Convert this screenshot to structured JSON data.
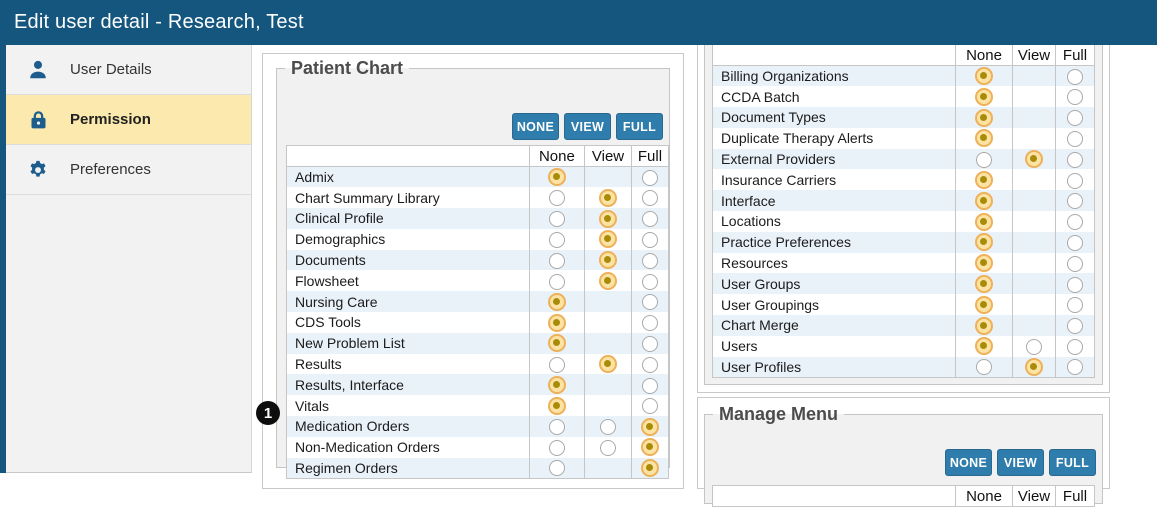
{
  "title_bar": {
    "title": "Edit user detail - Research, Test"
  },
  "sidebar": {
    "items": [
      {
        "label": "User Details",
        "icon": "user",
        "active": false
      },
      {
        "label": "Permission",
        "icon": "lock",
        "active": true
      },
      {
        "label": "Preferences",
        "icon": "gear",
        "active": false
      }
    ]
  },
  "colors": {
    "titlebar_bg": "#14567e",
    "button_bg": "#2f7dac",
    "active_item_bg": "#fbe9ad",
    "icon_blue": "#1d5d8d",
    "stripe": "#e9f1f9",
    "radio_sel_ring": "#edb159",
    "radio_sel_fill": "#fce3a3",
    "radio_sel_dot": "#a88c09"
  },
  "patient_chart": {
    "legend": "Patient Chart",
    "buttons": [
      "NONE",
      "VIEW",
      "FULL"
    ],
    "columns": [
      "None",
      "View",
      "Full"
    ],
    "rows": [
      {
        "label": "Admix",
        "none": "selected",
        "view": "absent",
        "full": "empty"
      },
      {
        "label": "Chart Summary Library",
        "none": "empty",
        "view": "selected",
        "full": "empty"
      },
      {
        "label": "Clinical Profile",
        "none": "empty",
        "view": "selected",
        "full": "empty"
      },
      {
        "label": "Demographics",
        "none": "empty",
        "view": "selected",
        "full": "empty"
      },
      {
        "label": "Documents",
        "none": "empty",
        "view": "selected",
        "full": "empty"
      },
      {
        "label": "Flowsheet",
        "none": "empty",
        "view": "selected",
        "full": "empty"
      },
      {
        "label": "Nursing Care",
        "none": "selected",
        "view": "absent",
        "full": "empty"
      },
      {
        "label": "CDS Tools",
        "none": "selected",
        "view": "absent",
        "full": "empty"
      },
      {
        "label": "New Problem List",
        "none": "selected",
        "view": "absent",
        "full": "empty"
      },
      {
        "label": "Results",
        "none": "empty",
        "view": "selected",
        "full": "empty"
      },
      {
        "label": "Results, Interface",
        "none": "selected",
        "view": "absent",
        "full": "empty"
      },
      {
        "label": "Vitals",
        "none": "selected",
        "view": "absent",
        "full": "empty"
      },
      {
        "label": "Medication Orders",
        "none": "empty",
        "view": "empty",
        "full": "selected"
      },
      {
        "label": "Non-Medication Orders",
        "none": "empty",
        "view": "empty",
        "full": "selected"
      },
      {
        "label": "Regimen Orders",
        "none": "empty",
        "view": "absent",
        "full": "selected"
      }
    ]
  },
  "admin_section": {
    "columns": [
      "None",
      "View",
      "Full"
    ],
    "rows": [
      {
        "label": "Billing Organizations",
        "none": "selected",
        "view": "absent",
        "full": "empty"
      },
      {
        "label": "CCDA Batch",
        "none": "selected",
        "view": "absent",
        "full": "empty"
      },
      {
        "label": "Document Types",
        "none": "selected",
        "view": "absent",
        "full": "empty"
      },
      {
        "label": "Duplicate Therapy Alerts",
        "none": "selected",
        "view": "absent",
        "full": "empty"
      },
      {
        "label": "External Providers",
        "none": "empty",
        "view": "selected",
        "full": "empty"
      },
      {
        "label": "Insurance Carriers",
        "none": "selected",
        "view": "absent",
        "full": "empty"
      },
      {
        "label": "Interface",
        "none": "selected",
        "view": "absent",
        "full": "empty"
      },
      {
        "label": "Locations",
        "none": "selected",
        "view": "absent",
        "full": "empty"
      },
      {
        "label": "Practice Preferences",
        "none": "selected",
        "view": "absent",
        "full": "empty"
      },
      {
        "label": "Resources",
        "none": "selected",
        "view": "absent",
        "full": "empty"
      },
      {
        "label": "User Groups",
        "none": "selected",
        "view": "absent",
        "full": "empty"
      },
      {
        "label": "User Groupings",
        "none": "selected",
        "view": "absent",
        "full": "empty"
      },
      {
        "label": "Chart Merge",
        "none": "selected",
        "view": "absent",
        "full": "empty"
      },
      {
        "label": "Users",
        "none": "selected",
        "view": "empty",
        "full": "empty"
      },
      {
        "label": "User Profiles",
        "none": "empty",
        "view": "selected",
        "full": "empty"
      }
    ]
  },
  "manage_menu": {
    "legend": "Manage Menu",
    "buttons": [
      "NONE",
      "VIEW",
      "FULL"
    ],
    "columns": [
      "None",
      "View",
      "Full"
    ],
    "rows": []
  },
  "annotation": {
    "badge_label": "1"
  }
}
